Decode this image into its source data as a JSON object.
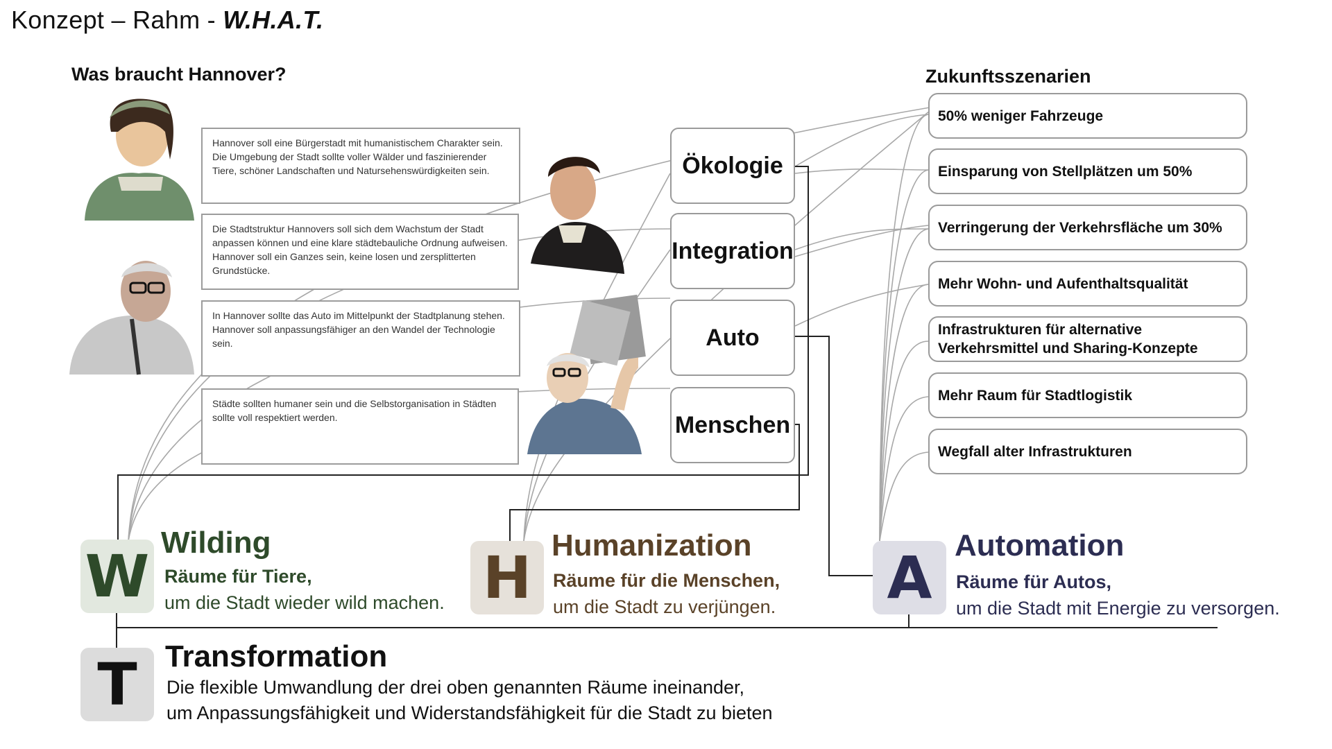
{
  "title": {
    "plain": "Konzept – Rahm - ",
    "bold": "W.H.A.T."
  },
  "left_heading": "Was braucht Hannover?",
  "right_heading": "Zukunftsszenarien",
  "quotes": [
    "Hannover soll eine Bürgerstadt mit humanistischem Charakter sein. Die Umgebung der Stadt sollte voller Wälder und faszinierender Tiere, schöner Landschaften und Natursehenswürdigkeiten sein.",
    "Die Stadtstruktur Hannovers soll sich dem Wachstum der Stadt anpassen können und eine klare städtebauliche Ordnung aufweisen. Hannover soll ein Ganzes sein, keine losen und zersplitterten Grundstücke.",
    "In Hannover sollte das Auto im Mittelpunkt der Stadtplanung stehen. Hannover soll anpassungsfähiger an den Wandel der Technologie sein.",
    "Städte sollten humaner sein und die Selbstorganisation in Städten sollte voll respektiert werden."
  ],
  "categories": [
    "Ökologie",
    "Integration",
    "Auto",
    "Menschen"
  ],
  "scenarios": [
    "50% weniger Fahrzeuge",
    "Einsparung von Stellplätzen um 50%",
    "Verringerung der Verkehrsfläche um 30%",
    "Mehr Wohn- und Aufenthaltsqualität",
    "Infrastrukturen für alternative Verkehrsmittel und Sharing-Konzepte",
    "Mehr Raum für Stadtlogistik",
    "Wegfall alter Infrastrukturen"
  ],
  "what": {
    "w": {
      "letter": "W",
      "title": "Wilding",
      "subtitle": "Räume für Tiere,",
      "desc": "um die Stadt wieder wild machen.",
      "color": "#2e4a2a",
      "bg": "#e2e8df"
    },
    "h": {
      "letter": "H",
      "title": "Humanization",
      "subtitle": "Räume für die Menschen,",
      "desc": "um die Stadt zu verjüngen.",
      "color": "#5a4228",
      "bg": "#e6e1da"
    },
    "a": {
      "letter": "A",
      "title": "Automation",
      "subtitle": "Räume für Autos,",
      "desc": "um die Stadt mit Energie zu versorgen.",
      "color": "#2c2d52",
      "bg": "#dedee6"
    },
    "t": {
      "letter": "T",
      "title": "Transformation",
      "desc1": "Die flexible Umwandlung der drei oben genannten Räume ineinander,",
      "desc2": "um Anpassungsfähigkeit und Widerstandsfähigkeit für die Stadt zu bieten",
      "color": "#111111",
      "bg": "#dcdcdc"
    }
  }
}
